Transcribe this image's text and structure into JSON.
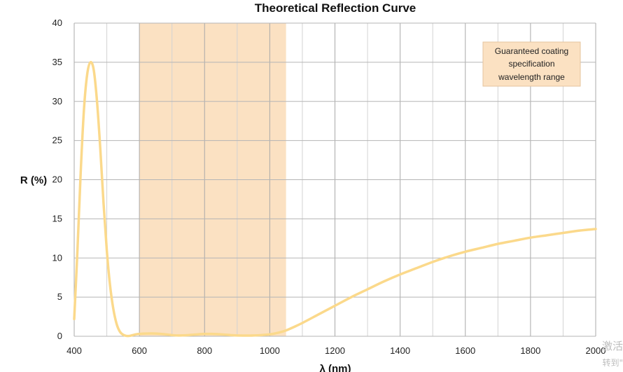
{
  "chart_data": {
    "type": "line",
    "title": "Theoretical Reflection Curve",
    "xlabel": "λ (nm)",
    "ylabel": "R (%)",
    "xlim": [
      400,
      2000
    ],
    "ylim": [
      0,
      40
    ],
    "xticks": [
      400,
      600,
      800,
      1000,
      1200,
      1400,
      1600,
      1800,
      2000
    ],
    "yticks": [
      0,
      5,
      10,
      15,
      20,
      25,
      30,
      35,
      40
    ],
    "grid": true,
    "legend_position": "top-right",
    "highlight_band": {
      "x_range": [
        600,
        1050
      ],
      "label_lines": [
        "Guaranteed coating",
        "specification",
        "wavelength range"
      ],
      "color": "#fbe1c2"
    },
    "series": [
      {
        "color": "#fbd98b",
        "x": [
          400,
          410,
          420,
          430,
          440,
          450,
          460,
          470,
          480,
          490,
          500,
          510,
          520,
          530,
          540,
          550,
          560,
          570,
          580,
          590,
          600,
          620,
          650,
          680,
          700,
          720,
          750,
          780,
          800,
          820,
          850,
          880,
          900,
          950,
          1000,
          1030,
          1050,
          1075,
          1100,
          1150,
          1200,
          1250,
          1300,
          1350,
          1400,
          1450,
          1500,
          1550,
          1600,
          1650,
          1700,
          1750,
          1800,
          1850,
          1900,
          1950,
          2000
        ],
        "y": [
          2.2,
          11,
          21,
          29,
          33.5,
          35,
          34,
          30,
          24,
          17,
          11,
          6.5,
          3.5,
          1.6,
          0.6,
          0.2,
          0.05,
          0.05,
          0.15,
          0.25,
          0.3,
          0.35,
          0.35,
          0.25,
          0.15,
          0.1,
          0.15,
          0.25,
          0.3,
          0.3,
          0.25,
          0.15,
          0.1,
          0.1,
          0.25,
          0.5,
          0.75,
          1.2,
          1.7,
          2.8,
          3.9,
          5.0,
          6.0,
          7.0,
          7.9,
          8.7,
          9.5,
          10.2,
          10.8,
          11.3,
          11.8,
          12.2,
          12.6,
          12.9,
          13.2,
          13.5,
          13.7
        ]
      }
    ]
  },
  "watermark": {
    "line1": "激活",
    "line2": "转到\""
  }
}
